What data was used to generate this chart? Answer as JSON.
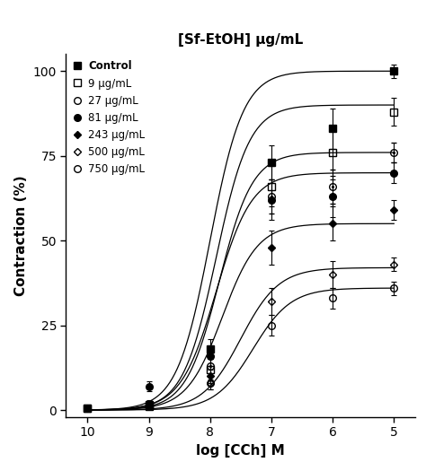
{
  "title": "[Sf-EtOH] μg/mL",
  "xlabel": "log [CCh] M",
  "ylabel": "Contraction (%)",
  "xticks": [
    -10,
    -9,
    -8,
    -7,
    -6,
    -5
  ],
  "xtick_labels": [
    "10",
    "9",
    "8",
    "7",
    "6",
    "5"
  ],
  "yticks": [
    0,
    25,
    50,
    75,
    100
  ],
  "series": [
    {
      "label": "Control",
      "marker": "s",
      "fillstyle": "full",
      "bold_label": true,
      "Emax": 100,
      "EC50_log": -8.0,
      "n": 1.6,
      "points_x": [
        -10,
        -9,
        -8,
        -7,
        -6,
        -5
      ],
      "points_y": [
        0.5,
        1.0,
        18,
        73,
        83,
        100
      ],
      "yerr": [
        0.3,
        0.5,
        3,
        5,
        6,
        2
      ]
    },
    {
      "label": "9 μg/mL",
      "marker": "s",
      "fillstyle": "none",
      "bold_label": false,
      "Emax": 90,
      "EC50_log": -7.9,
      "n": 1.6,
      "points_x": [
        -10,
        -9,
        -8,
        -7,
        -6,
        -5
      ],
      "points_y": [
        0.5,
        1.5,
        12,
        66,
        76,
        88
      ],
      "yerr": [
        0.3,
        0.5,
        3,
        6,
        8,
        4
      ]
    },
    {
      "label": "27 μg/mL",
      "marker": "halffill",
      "fillstyle": "halffill",
      "bold_label": false,
      "Emax": 76,
      "EC50_log": -7.85,
      "n": 1.6,
      "points_x": [
        -10,
        -9,
        -8,
        -7,
        -6,
        -5
      ],
      "points_y": [
        0.5,
        1.5,
        13,
        63,
        66,
        76
      ],
      "yerr": [
        0.3,
        0.5,
        3,
        5,
        5,
        3
      ]
    },
    {
      "label": "81 μg/mL",
      "marker": "o",
      "fillstyle": "full",
      "bold_label": false,
      "Emax": 70,
      "EC50_log": -7.9,
      "n": 1.5,
      "points_x": [
        -10,
        -9,
        -8,
        -7,
        -6,
        -5
      ],
      "points_y": [
        0.5,
        7,
        16,
        62,
        63,
        70
      ],
      "yerr": [
        0.3,
        1.5,
        3,
        6,
        6,
        3
      ]
    },
    {
      "label": "243 μg/mL",
      "marker": "D",
      "fillstyle": "full",
      "bold_label": false,
      "Emax": 55,
      "EC50_log": -7.8,
      "n": 1.5,
      "points_x": [
        -10,
        -9,
        -8,
        -7,
        -6,
        -5
      ],
      "points_y": [
        0.5,
        2,
        10,
        48,
        55,
        59
      ],
      "yerr": [
        0.3,
        0.5,
        2,
        5,
        5,
        3
      ]
    },
    {
      "label": "500 μg/mL",
      "marker": "D",
      "fillstyle": "none",
      "bold_label": false,
      "Emax": 42,
      "EC50_log": -7.5,
      "n": 1.4,
      "points_x": [
        -10,
        -9,
        -8,
        -7,
        -6,
        -5
      ],
      "points_y": [
        0.5,
        1.5,
        8,
        32,
        40,
        43
      ],
      "yerr": [
        0.3,
        0.5,
        2,
        4,
        4,
        2
      ]
    },
    {
      "label": "750 μg/mL",
      "marker": "o",
      "fillstyle": "none",
      "bold_label": false,
      "Emax": 36,
      "EC50_log": -7.3,
      "n": 1.4,
      "points_x": [
        -10,
        -9,
        -8,
        -7,
        -6,
        -5
      ],
      "points_y": [
        0.5,
        2,
        8,
        25,
        33,
        36
      ],
      "yerr": [
        0.3,
        0.8,
        2,
        3,
        3,
        2
      ]
    }
  ]
}
